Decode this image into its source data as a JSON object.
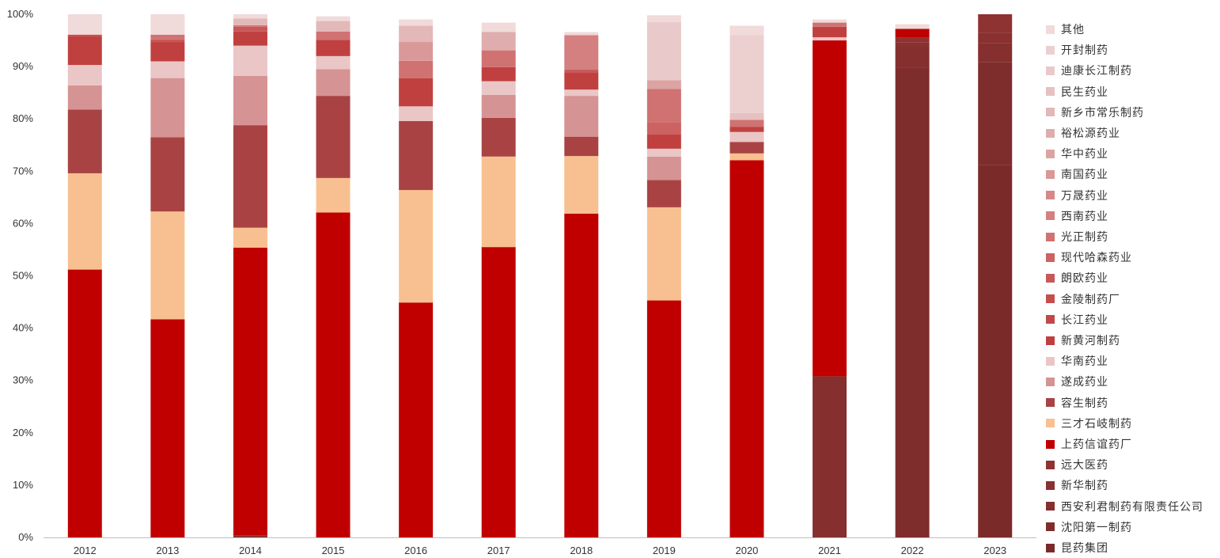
{
  "chart_data": {
    "type": "bar",
    "stacked": true,
    "percent": true,
    "categories": [
      "2012",
      "2013",
      "2014",
      "2015",
      "2016",
      "2017",
      "2018",
      "2019",
      "2020",
      "2021",
      "2022",
      "2023"
    ],
    "y_ticks": [
      "0%",
      "10%",
      "20%",
      "30%",
      "40%",
      "50%",
      "60%",
      "70%",
      "80%",
      "90%",
      "100%"
    ],
    "ylim": [
      0,
      100
    ],
    "grid": false,
    "legend_position": "right",
    "series": [
      {
        "name": "昆药集团",
        "color": "#7b2a2a",
        "values": [
          0,
          0,
          0,
          0,
          0,
          0,
          0,
          0,
          0,
          0,
          0,
          71.2
        ]
      },
      {
        "name": "沈阳第一制药",
        "color": "#7f2c2c",
        "values": [
          0,
          0,
          0,
          0,
          0,
          0,
          0,
          0,
          0,
          0,
          89.8,
          19.6
        ]
      },
      {
        "name": "西安利君制药有限责任公司",
        "color": "#852f2f",
        "values": [
          0,
          0,
          0,
          0,
          0,
          0,
          0,
          0,
          0,
          30.8,
          4.0,
          3.7
        ]
      },
      {
        "name": "新华制药",
        "color": "#8a3030",
        "values": [
          0,
          0,
          0.4,
          0,
          0,
          0,
          0,
          0,
          0,
          0,
          0.8,
          2.0
        ]
      },
      {
        "name": "远大医药",
        "color": "#8f3232",
        "values": [
          0,
          0,
          0,
          0,
          0,
          0,
          0,
          0,
          0,
          0,
          0.9,
          3.5
        ]
      },
      {
        "name": "上药信谊药厂",
        "color": "#c00000",
        "values": [
          51.2,
          41.7,
          55.0,
          62.1,
          44.9,
          55.5,
          61.9,
          45.3,
          72.1,
          64.2,
          1.7,
          0
        ]
      },
      {
        "name": "三才石岐制药",
        "color": "#f8c090",
        "values": [
          18.4,
          20.6,
          3.8,
          6.6,
          21.5,
          17.3,
          11.0,
          17.8,
          1.3,
          0,
          0,
          0
        ]
      },
      {
        "name": "容生制药",
        "color": "#a94343",
        "values": [
          12.2,
          14.2,
          19.6,
          15.7,
          13.2,
          7.4,
          3.7,
          5.2,
          2.2,
          0,
          0,
          0
        ]
      },
      {
        "name": "遂成药业",
        "color": "#d69393",
        "values": [
          4.6,
          11.3,
          9.4,
          5.1,
          0,
          4.4,
          7.8,
          4.5,
          0,
          0,
          0,
          0
        ]
      },
      {
        "name": "华南药业",
        "color": "#eac6c6",
        "values": [
          3.9,
          3.2,
          5.8,
          2.5,
          2.8,
          2.6,
          1.2,
          1.5,
          1.9,
          0.6,
          0,
          0
        ]
      },
      {
        "name": "新黄河制药",
        "color": "#c04040",
        "values": [
          5.5,
          3.7,
          2.7,
          3.1,
          5.4,
          2.7,
          3.3,
          2.7,
          1.0,
          2.0,
          0,
          0
        ]
      },
      {
        "name": "长江药业",
        "color": "#c24848",
        "values": [
          0.3,
          0,
          0,
          0,
          0,
          0,
          0,
          0,
          0,
          0,
          0,
          0
        ]
      },
      {
        "name": "金陵制药厂",
        "color": "#c44e4e",
        "values": [
          0,
          0,
          0,
          0,
          0,
          0,
          0,
          0,
          0,
          0,
          0,
          0
        ]
      },
      {
        "name": "朗欧药业",
        "color": "#c85757",
        "values": [
          0,
          0.5,
          0.9,
          0,
          0,
          0,
          0.5,
          0,
          0,
          0,
          0,
          0
        ]
      },
      {
        "name": "现代哈森药业",
        "color": "#cc6262",
        "values": [
          0,
          0,
          0,
          0,
          0,
          0,
          0,
          2.4,
          0,
          0,
          0,
          0
        ]
      },
      {
        "name": "光正制药",
        "color": "#d07272",
        "values": [
          0,
          0.9,
          0.3,
          1.6,
          3.3,
          3.2,
          0,
          6.3,
          1.3,
          0.8,
          0,
          0
        ]
      },
      {
        "name": "西南药业",
        "color": "#d48080",
        "values": [
          0,
          0,
          0,
          0,
          0,
          0,
          6.6,
          0,
          0,
          0,
          0,
          0
        ]
      },
      {
        "name": "万晟药业",
        "color": "#d68888",
        "values": [
          0,
          0,
          0,
          0,
          0,
          0,
          0,
          0,
          0,
          0,
          0,
          0
        ]
      },
      {
        "name": "南国药业",
        "color": "#d99999",
        "values": [
          0,
          0,
          0,
          0,
          3.6,
          0,
          0,
          0,
          0,
          0,
          0,
          0
        ]
      },
      {
        "name": "华中药业",
        "color": "#dca3a3",
        "values": [
          0,
          0,
          0,
          0,
          0,
          0,
          0,
          1.7,
          0,
          0,
          0,
          0
        ]
      },
      {
        "name": "裕松源药业",
        "color": "#dfadad",
        "values": [
          0,
          0,
          0,
          0,
          0,
          3.5,
          0,
          0,
          0,
          0,
          0,
          0
        ]
      },
      {
        "name": "新乡市常乐制药",
        "color": "#e3b8b8",
        "values": [
          0,
          0,
          1.3,
          2.0,
          3.1,
          0,
          0,
          0,
          0,
          0,
          0,
          0
        ]
      },
      {
        "name": "民生药业",
        "color": "#e6c1c1",
        "values": [
          0,
          0,
          0,
          0,
          0,
          0,
          0,
          0,
          1.3,
          0,
          0,
          0
        ]
      },
      {
        "name": "迪康长江制药",
        "color": "#e9c9c9",
        "values": [
          0,
          0,
          0,
          0,
          0,
          0,
          0,
          11.1,
          0,
          0,
          0,
          0
        ]
      },
      {
        "name": "开封制药",
        "color": "#ecd0d0",
        "values": [
          0,
          0,
          0,
          0,
          0,
          0,
          0,
          0,
          14.9,
          0,
          0,
          0
        ]
      },
      {
        "name": "其他",
        "color": "#f0dada",
        "values": [
          3.9,
          3.9,
          1.3,
          0.9,
          1.2,
          1.8,
          0.6,
          1.3,
          1.8,
          0.6,
          0.9,
          0
        ]
      }
    ]
  }
}
